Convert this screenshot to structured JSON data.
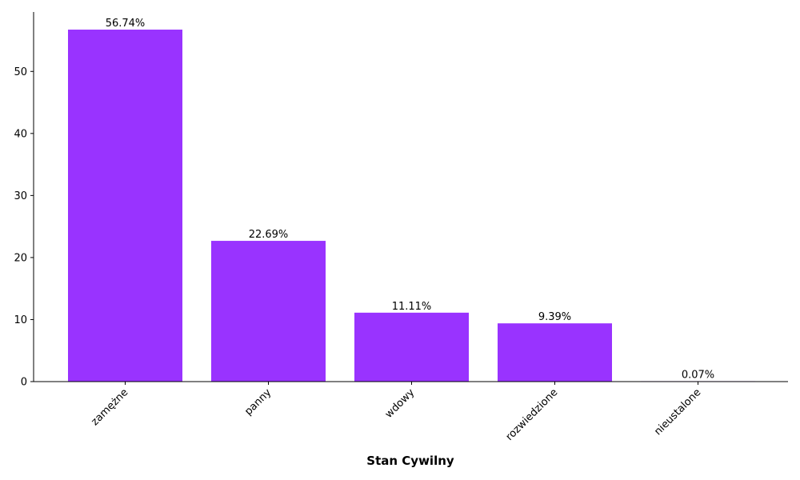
{
  "chart_data": {
    "type": "bar",
    "x_label": "Stan Cywilny",
    "categories": [
      "zamężne",
      "panny",
      "wdowy",
      "rozwiedzione",
      "nieustalone"
    ],
    "values": [
      56.74,
      22.69,
      11.11,
      9.39,
      0.07
    ],
    "value_labels": [
      "56.74%",
      "22.69%",
      "11.11%",
      "9.39%",
      "0.07%"
    ],
    "color": "#9933ff",
    "ylim": [
      0,
      59.58
    ],
    "yticks": [
      0,
      10,
      20,
      30,
      40,
      50
    ],
    "grid": false
  }
}
